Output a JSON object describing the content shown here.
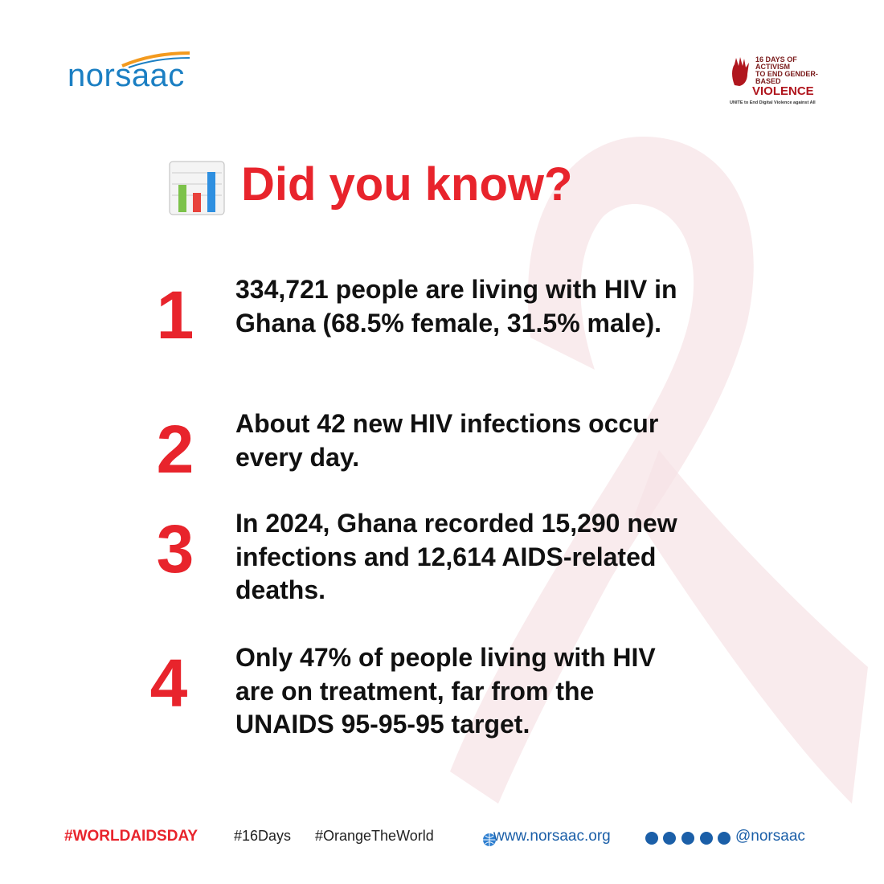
{
  "header": {
    "logo": "norsaac",
    "badge": {
      "line1": "16 DAYS OF ACTIVISM",
      "line2": "TO END GENDER-BASED",
      "line3": "VIOLENCE",
      "tagline": "UNITE to End Digital Violence against All"
    }
  },
  "title": "Did you know?",
  "facts": [
    {
      "number": "1",
      "text": "334,721 people are living with HIV in Ghana (68.5% female, 31.5% male)."
    },
    {
      "number": "2",
      "text": "About 42 new HIV infections occur every day."
    },
    {
      "number": "3",
      "text": "In 2024, Ghana recorded 15,290 new infections and 12,614 AIDS-related deaths."
    },
    {
      "number": "4",
      "text": "Only 47% of people living with HIV are on treatment, far from the UNAIDS 95-95-95 target."
    }
  ],
  "footer": {
    "hashtag_main": "#WORLDAIDSDAY",
    "hashtags": [
      "#16Days",
      "#OrangeTheWorld"
    ],
    "website": "www.norsaac.org",
    "handle": "@norsaac"
  }
}
